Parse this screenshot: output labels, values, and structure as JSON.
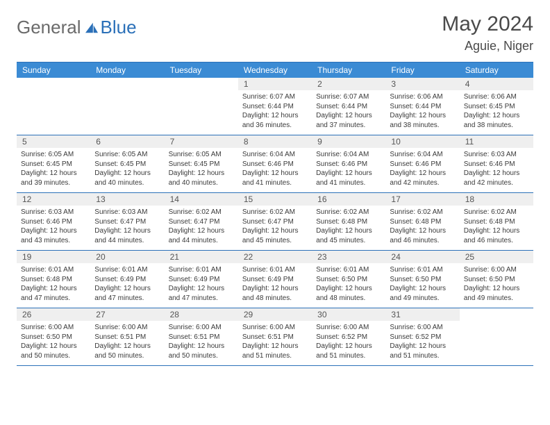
{
  "brand": {
    "part1": "General",
    "part2": "Blue"
  },
  "title": "May 2024",
  "location": "Aguie, Niger",
  "colors": {
    "header_bg": "#3b8bd4",
    "rule": "#2b70b8",
    "daynum_bg": "#efefef",
    "text": "#3a3a3a",
    "title_color": "#4a4a4a"
  },
  "dow": [
    "Sunday",
    "Monday",
    "Tuesday",
    "Wednesday",
    "Thursday",
    "Friday",
    "Saturday"
  ],
  "weeks": [
    [
      {
        "n": "",
        "sr": "",
        "ss": "",
        "dl": ""
      },
      {
        "n": "",
        "sr": "",
        "ss": "",
        "dl": ""
      },
      {
        "n": "",
        "sr": "",
        "ss": "",
        "dl": ""
      },
      {
        "n": "1",
        "sr": "Sunrise: 6:07 AM",
        "ss": "Sunset: 6:44 PM",
        "dl": "Daylight: 12 hours and 36 minutes."
      },
      {
        "n": "2",
        "sr": "Sunrise: 6:07 AM",
        "ss": "Sunset: 6:44 PM",
        "dl": "Daylight: 12 hours and 37 minutes."
      },
      {
        "n": "3",
        "sr": "Sunrise: 6:06 AM",
        "ss": "Sunset: 6:44 PM",
        "dl": "Daylight: 12 hours and 38 minutes."
      },
      {
        "n": "4",
        "sr": "Sunrise: 6:06 AM",
        "ss": "Sunset: 6:45 PM",
        "dl": "Daylight: 12 hours and 38 minutes."
      }
    ],
    [
      {
        "n": "5",
        "sr": "Sunrise: 6:05 AM",
        "ss": "Sunset: 6:45 PM",
        "dl": "Daylight: 12 hours and 39 minutes."
      },
      {
        "n": "6",
        "sr": "Sunrise: 6:05 AM",
        "ss": "Sunset: 6:45 PM",
        "dl": "Daylight: 12 hours and 40 minutes."
      },
      {
        "n": "7",
        "sr": "Sunrise: 6:05 AM",
        "ss": "Sunset: 6:45 PM",
        "dl": "Daylight: 12 hours and 40 minutes."
      },
      {
        "n": "8",
        "sr": "Sunrise: 6:04 AM",
        "ss": "Sunset: 6:46 PM",
        "dl": "Daylight: 12 hours and 41 minutes."
      },
      {
        "n": "9",
        "sr": "Sunrise: 6:04 AM",
        "ss": "Sunset: 6:46 PM",
        "dl": "Daylight: 12 hours and 41 minutes."
      },
      {
        "n": "10",
        "sr": "Sunrise: 6:04 AM",
        "ss": "Sunset: 6:46 PM",
        "dl": "Daylight: 12 hours and 42 minutes."
      },
      {
        "n": "11",
        "sr": "Sunrise: 6:03 AM",
        "ss": "Sunset: 6:46 PM",
        "dl": "Daylight: 12 hours and 42 minutes."
      }
    ],
    [
      {
        "n": "12",
        "sr": "Sunrise: 6:03 AM",
        "ss": "Sunset: 6:46 PM",
        "dl": "Daylight: 12 hours and 43 minutes."
      },
      {
        "n": "13",
        "sr": "Sunrise: 6:03 AM",
        "ss": "Sunset: 6:47 PM",
        "dl": "Daylight: 12 hours and 44 minutes."
      },
      {
        "n": "14",
        "sr": "Sunrise: 6:02 AM",
        "ss": "Sunset: 6:47 PM",
        "dl": "Daylight: 12 hours and 44 minutes."
      },
      {
        "n": "15",
        "sr": "Sunrise: 6:02 AM",
        "ss": "Sunset: 6:47 PM",
        "dl": "Daylight: 12 hours and 45 minutes."
      },
      {
        "n": "16",
        "sr": "Sunrise: 6:02 AM",
        "ss": "Sunset: 6:48 PM",
        "dl": "Daylight: 12 hours and 45 minutes."
      },
      {
        "n": "17",
        "sr": "Sunrise: 6:02 AM",
        "ss": "Sunset: 6:48 PM",
        "dl": "Daylight: 12 hours and 46 minutes."
      },
      {
        "n": "18",
        "sr": "Sunrise: 6:02 AM",
        "ss": "Sunset: 6:48 PM",
        "dl": "Daylight: 12 hours and 46 minutes."
      }
    ],
    [
      {
        "n": "19",
        "sr": "Sunrise: 6:01 AM",
        "ss": "Sunset: 6:48 PM",
        "dl": "Daylight: 12 hours and 47 minutes."
      },
      {
        "n": "20",
        "sr": "Sunrise: 6:01 AM",
        "ss": "Sunset: 6:49 PM",
        "dl": "Daylight: 12 hours and 47 minutes."
      },
      {
        "n": "21",
        "sr": "Sunrise: 6:01 AM",
        "ss": "Sunset: 6:49 PM",
        "dl": "Daylight: 12 hours and 47 minutes."
      },
      {
        "n": "22",
        "sr": "Sunrise: 6:01 AM",
        "ss": "Sunset: 6:49 PM",
        "dl": "Daylight: 12 hours and 48 minutes."
      },
      {
        "n": "23",
        "sr": "Sunrise: 6:01 AM",
        "ss": "Sunset: 6:50 PM",
        "dl": "Daylight: 12 hours and 48 minutes."
      },
      {
        "n": "24",
        "sr": "Sunrise: 6:01 AM",
        "ss": "Sunset: 6:50 PM",
        "dl": "Daylight: 12 hours and 49 minutes."
      },
      {
        "n": "25",
        "sr": "Sunrise: 6:00 AM",
        "ss": "Sunset: 6:50 PM",
        "dl": "Daylight: 12 hours and 49 minutes."
      }
    ],
    [
      {
        "n": "26",
        "sr": "Sunrise: 6:00 AM",
        "ss": "Sunset: 6:50 PM",
        "dl": "Daylight: 12 hours and 50 minutes."
      },
      {
        "n": "27",
        "sr": "Sunrise: 6:00 AM",
        "ss": "Sunset: 6:51 PM",
        "dl": "Daylight: 12 hours and 50 minutes."
      },
      {
        "n": "28",
        "sr": "Sunrise: 6:00 AM",
        "ss": "Sunset: 6:51 PM",
        "dl": "Daylight: 12 hours and 50 minutes."
      },
      {
        "n": "29",
        "sr": "Sunrise: 6:00 AM",
        "ss": "Sunset: 6:51 PM",
        "dl": "Daylight: 12 hours and 51 minutes."
      },
      {
        "n": "30",
        "sr": "Sunrise: 6:00 AM",
        "ss": "Sunset: 6:52 PM",
        "dl": "Daylight: 12 hours and 51 minutes."
      },
      {
        "n": "31",
        "sr": "Sunrise: 6:00 AM",
        "ss": "Sunset: 6:52 PM",
        "dl": "Daylight: 12 hours and 51 minutes."
      },
      {
        "n": "",
        "sr": "",
        "ss": "",
        "dl": ""
      }
    ]
  ]
}
